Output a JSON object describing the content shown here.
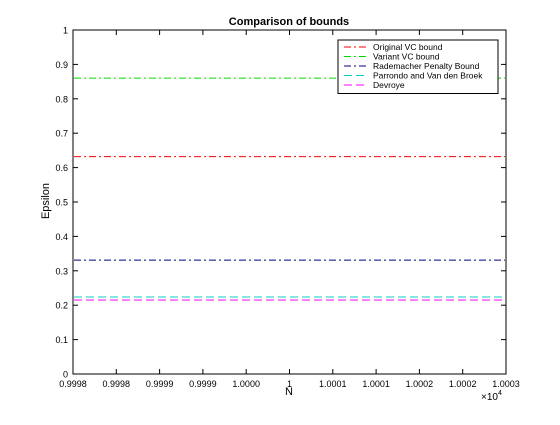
{
  "chart_data": {
    "type": "line",
    "title": "Comparison of bounds",
    "xlabel": "N",
    "ylabel": "Epsilon",
    "x_multiplier_label": "×10",
    "x_multiplier_exponent": "4",
    "x_range": [
      0.9998,
      1.0003
    ],
    "ylim": [
      0,
      1
    ],
    "x_tick_labels": [
      "0.9998",
      "0.9998",
      "0.9999",
      "0.9999",
      "1.0000",
      "1",
      "1.0001",
      "1.0001",
      "1.0002",
      "1.0002",
      "1.0003"
    ],
    "y_ticks": [
      0,
      0.1,
      0.2,
      0.3,
      0.4,
      0.5,
      0.6,
      0.7,
      0.8,
      0.9,
      1
    ],
    "y_tick_labels": [
      "0",
      "0.1",
      "0.2",
      "0.3",
      "0.4",
      "0.5",
      "0.6",
      "0.7",
      "0.8",
      "0.9",
      "1"
    ],
    "grid": false,
    "legend_position": "top-right",
    "series": [
      {
        "name": "Original VC bound",
        "value": 0.632,
        "color": "#ff0000",
        "style": "dashdot"
      },
      {
        "name": "Variant VC bound",
        "value": 0.86,
        "color": "#00dd00",
        "style": "dashdot"
      },
      {
        "name": "Rademacher Penalty Bound",
        "value": 0.331,
        "color": "#000080",
        "style": "dashdot"
      },
      {
        "name": "Parrondo and Van den Broek",
        "value": 0.224,
        "color": "#00cccc",
        "style": "dashed"
      },
      {
        "name": "Devroye",
        "value": 0.215,
        "color": "#ff00ff",
        "style": "dashed"
      }
    ]
  }
}
